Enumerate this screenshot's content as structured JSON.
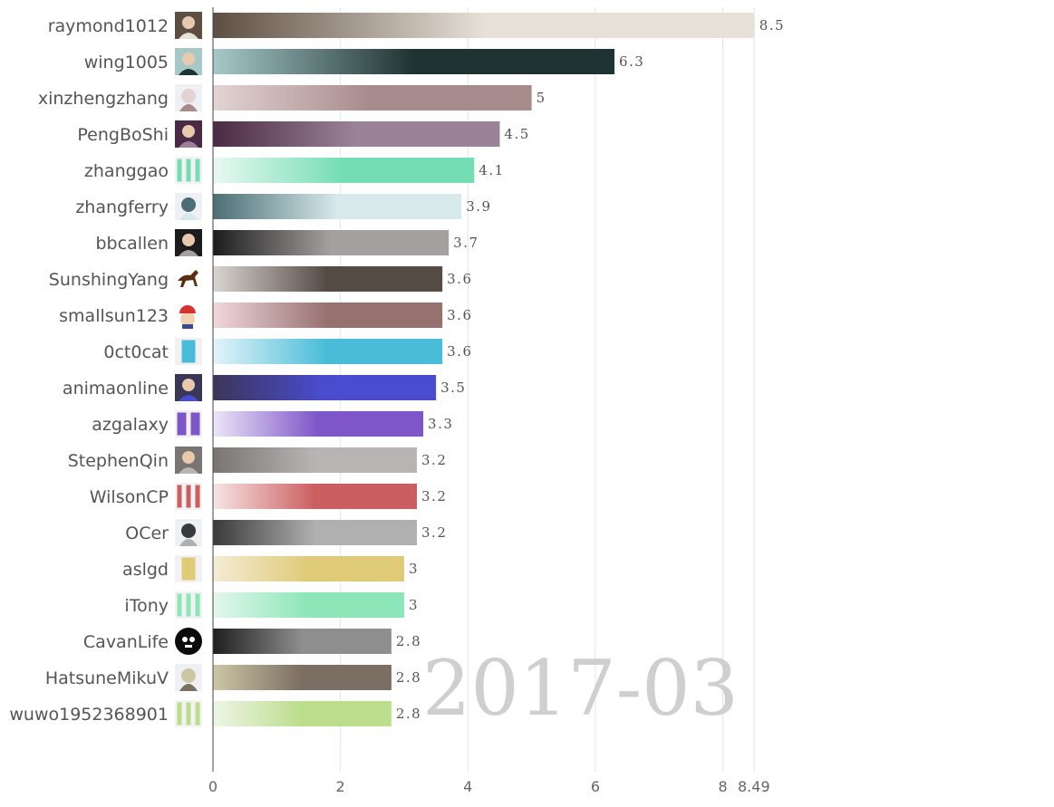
{
  "chart_data": {
    "type": "bar",
    "orientation": "horizontal",
    "watermark": "2017-03",
    "categories": [
      "raymond1012",
      "wing1005",
      "xinzhengzhang",
      "PengBoShi",
      "zhanggao",
      "zhangferry",
      "bbcallen",
      "SunshingYang",
      "smallsun123",
      "0ct0cat",
      "animaonline",
      "azgalaxy",
      "StephenQin",
      "WilsonCP",
      "OCer",
      "aslgd",
      "iTony",
      "CavanLife",
      "HatsuneMikuV",
      "wuwo1952368901"
    ],
    "values": [
      8.5,
      6.3,
      5,
      4.5,
      4.1,
      3.9,
      3.7,
      3.6,
      3.6,
      3.6,
      3.5,
      3.3,
      3.2,
      3.2,
      3.2,
      3,
      3,
      2.8,
      2.8,
      2.8
    ],
    "value_labels": [
      "8.5",
      "6.3",
      "5",
      "4.5",
      "4.1",
      "3.9",
      "3.7",
      "3.6",
      "3.6",
      "3.6",
      "3.5",
      "3.3",
      "3.2",
      "3.2",
      "3.2",
      "3",
      "3",
      "2.8",
      "2.8",
      "2.8"
    ],
    "bar_colors": [
      [
        "#5e4e42",
        "#e6e0d6"
      ],
      [
        "#a6c9c8",
        "#1f3332"
      ],
      [
        "#e3d4d4",
        "#a78a8b"
      ],
      [
        "#4a2a44",
        "#9a8398"
      ],
      [
        "#e9f9f3",
        "#74ddb4"
      ],
      [
        "#4b6e74",
        "#d7e9eb"
      ],
      [
        "#1c1c1c",
        "#a5a0a0"
      ],
      [
        "#d9d5d1",
        "#554a44"
      ],
      [
        "#f0d8dd",
        "#977170"
      ],
      [
        "#e4f4f9",
        "#48bcd8"
      ],
      [
        "#3a3658",
        "#4a4cd0"
      ],
      [
        "#ece6f7",
        "#7e56c8"
      ],
      [
        "#7a7573",
        "#b7b4b3"
      ],
      [
        "#f8e4e5",
        "#cb5f60"
      ],
      [
        "#3a3a3a",
        "#b0b0b0"
      ],
      [
        "#f4ecd4",
        "#dfca78"
      ],
      [
        "#e3f7ed",
        "#8ce6b7"
      ],
      [
        "#1f1f1f",
        "#8e8e8e"
      ],
      [
        "#cdc6a5",
        "#7b6e62"
      ],
      [
        "#eef5e6",
        "#bcdd8c"
      ]
    ],
    "avatar_icons": [
      "photo-avatar-icon",
      "photo-avatar-icon",
      "anime-avatar-icon",
      "photo-avatar-icon",
      "identicon-avatar-icon",
      "anime-avatar-icon",
      "photo-avatar-icon",
      "horse-avatar-icon",
      "cartoon-avatar-icon",
      "identicon-avatar-icon",
      "photo-avatar-icon",
      "identicon-avatar-icon",
      "photo-avatar-icon",
      "identicon-avatar-icon",
      "anime-avatar-icon",
      "identicon-avatar-icon",
      "identicon-avatar-icon",
      "skull-avatar-icon",
      "anime-avatar-icon",
      "identicon-avatar-icon"
    ],
    "x_ticks": [
      "0",
      "2",
      "4",
      "6",
      "8",
      "8.49"
    ],
    "x_tick_values": [
      0,
      2,
      4,
      6,
      8,
      8.49
    ],
    "xlim": [
      0,
      8.49
    ],
    "grid": true,
    "title": "",
    "xlabel": "",
    "ylabel": ""
  }
}
